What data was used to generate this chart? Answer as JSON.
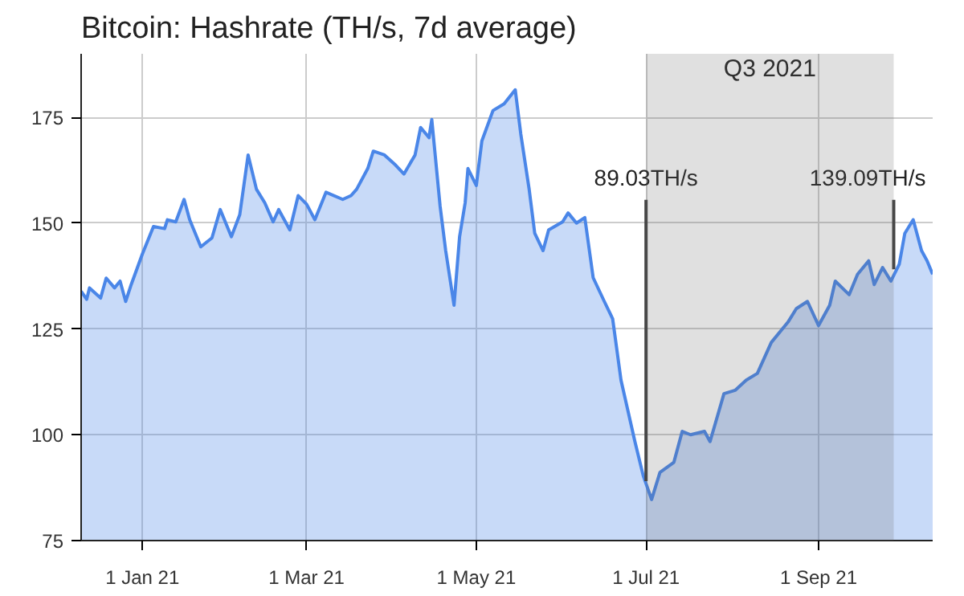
{
  "chart_data": {
    "type": "area",
    "title": "Bitcoin: Hashrate (TH/s, 7d average)",
    "x": [
      "2020-12-10",
      "2020-12-12",
      "2020-12-13",
      "2020-12-17",
      "2020-12-19",
      "2020-12-22",
      "2020-12-24",
      "2020-12-26",
      "2020-12-28",
      "2021-01-01",
      "2021-01-05",
      "2021-01-09",
      "2021-01-10",
      "2021-01-13",
      "2021-01-16",
      "2021-01-18",
      "2021-01-22",
      "2021-01-26",
      "2021-01-29",
      "2021-02-02",
      "2021-02-05",
      "2021-02-08",
      "2021-02-11",
      "2021-02-14",
      "2021-02-17",
      "2021-02-19",
      "2021-02-23",
      "2021-02-26",
      "2021-03-01",
      "2021-03-04",
      "2021-03-08",
      "2021-03-14",
      "2021-03-17",
      "2021-03-19",
      "2021-03-23",
      "2021-03-25",
      "2021-03-29",
      "2021-04-02",
      "2021-04-05",
      "2021-04-09",
      "2021-04-11",
      "2021-04-14",
      "2021-04-15",
      "2021-04-18",
      "2021-04-20",
      "2021-04-23",
      "2021-04-25",
      "2021-04-27",
      "2021-04-28",
      "2021-05-01",
      "2021-05-03",
      "2021-05-07",
      "2021-05-11",
      "2021-05-15",
      "2021-05-17",
      "2021-05-20",
      "2021-05-22",
      "2021-05-25",
      "2021-05-27",
      "2021-06-01",
      "2021-06-03",
      "2021-06-06",
      "2021-06-09",
      "2021-06-12",
      "2021-06-16",
      "2021-06-19",
      "2021-06-22",
      "2021-06-27",
      "2021-06-30",
      "2021-07-03",
      "2021-07-06",
      "2021-07-11",
      "2021-07-14",
      "2021-07-17",
      "2021-07-22",
      "2021-07-24",
      "2021-07-29",
      "2021-08-02",
      "2021-08-06",
      "2021-08-10",
      "2021-08-15",
      "2021-08-21",
      "2021-08-24",
      "2021-08-28",
      "2021-09-01",
      "2021-09-05",
      "2021-09-07",
      "2021-09-12",
      "2021-09-15",
      "2021-09-19",
      "2021-09-21",
      "2021-09-24",
      "2021-09-27",
      "2021-09-30",
      "2021-10-02",
      "2021-10-05",
      "2021-10-08",
      "2021-10-10",
      "2021-10-12"
    ],
    "series": [
      {
        "color": "#4a86e8",
        "values": [
          133.9,
          132,
          134.7,
          132.3,
          137,
          134.7,
          136.3,
          131.5,
          135.5,
          142.7,
          149.2,
          148.7,
          150.8,
          150.3,
          155.6,
          150.8,
          144.4,
          146.5,
          153.2,
          146.8,
          152,
          166.1,
          158,
          154.8,
          150.3,
          153.2,
          148.4,
          156.5,
          154.5,
          150.8,
          157.3,
          155.6,
          156.5,
          158,
          162.9,
          167,
          166.1,
          163.7,
          161.6,
          166.1,
          172.6,
          170.2,
          174.5,
          154,
          143.5,
          130.6,
          146.8,
          154.8,
          162.9,
          158.9,
          169.4,
          176.6,
          178.2,
          181.5,
          171,
          158,
          147.6,
          143.5,
          148.4,
          150.3,
          152.4,
          150,
          151.3,
          137.1,
          131.5,
          127.4,
          112.9,
          98.4,
          90.3,
          84.7,
          91.1,
          93.5,
          100.8,
          100,
          100.8,
          98.4,
          109.7,
          110.5,
          112.9,
          114.5,
          121.8,
          126.6,
          129.8,
          131.5,
          125.8,
          130.6,
          136.3,
          133.1,
          137.9,
          141.1,
          135.5,
          139.5,
          136.3,
          140.3,
          147.6,
          150.8,
          143.5,
          141.1,
          137.9
        ]
      }
    ],
    "xlim": [
      "2020-12-10",
      "2021-10-12"
    ],
    "xticks": [
      {
        "value": "2021-01-01",
        "label": "1 Jan 21"
      },
      {
        "value": "2021-03-01",
        "label": "1 Mar 21"
      },
      {
        "value": "2021-05-01",
        "label": "1 May 21"
      },
      {
        "value": "2021-07-01",
        "label": "1 Jul 21"
      },
      {
        "value": "2021-09-01",
        "label": "1 Sep 21"
      }
    ],
    "ylim": [
      75,
      190
    ],
    "yticks": [
      75,
      100,
      125,
      150,
      175
    ],
    "grid": true,
    "bands": [
      {
        "axis": "x",
        "from": "2021-07-01",
        "to": "2021-09-28",
        "label": "Q3 2021",
        "color": "#666666"
      }
    ],
    "annotations": [
      {
        "text": "89.03TH/s",
        "x": "2021-07-01",
        "y": 89.03
      },
      {
        "text": "139.09TH/s",
        "x": "2021-09-28",
        "y": 139.09
      }
    ]
  }
}
